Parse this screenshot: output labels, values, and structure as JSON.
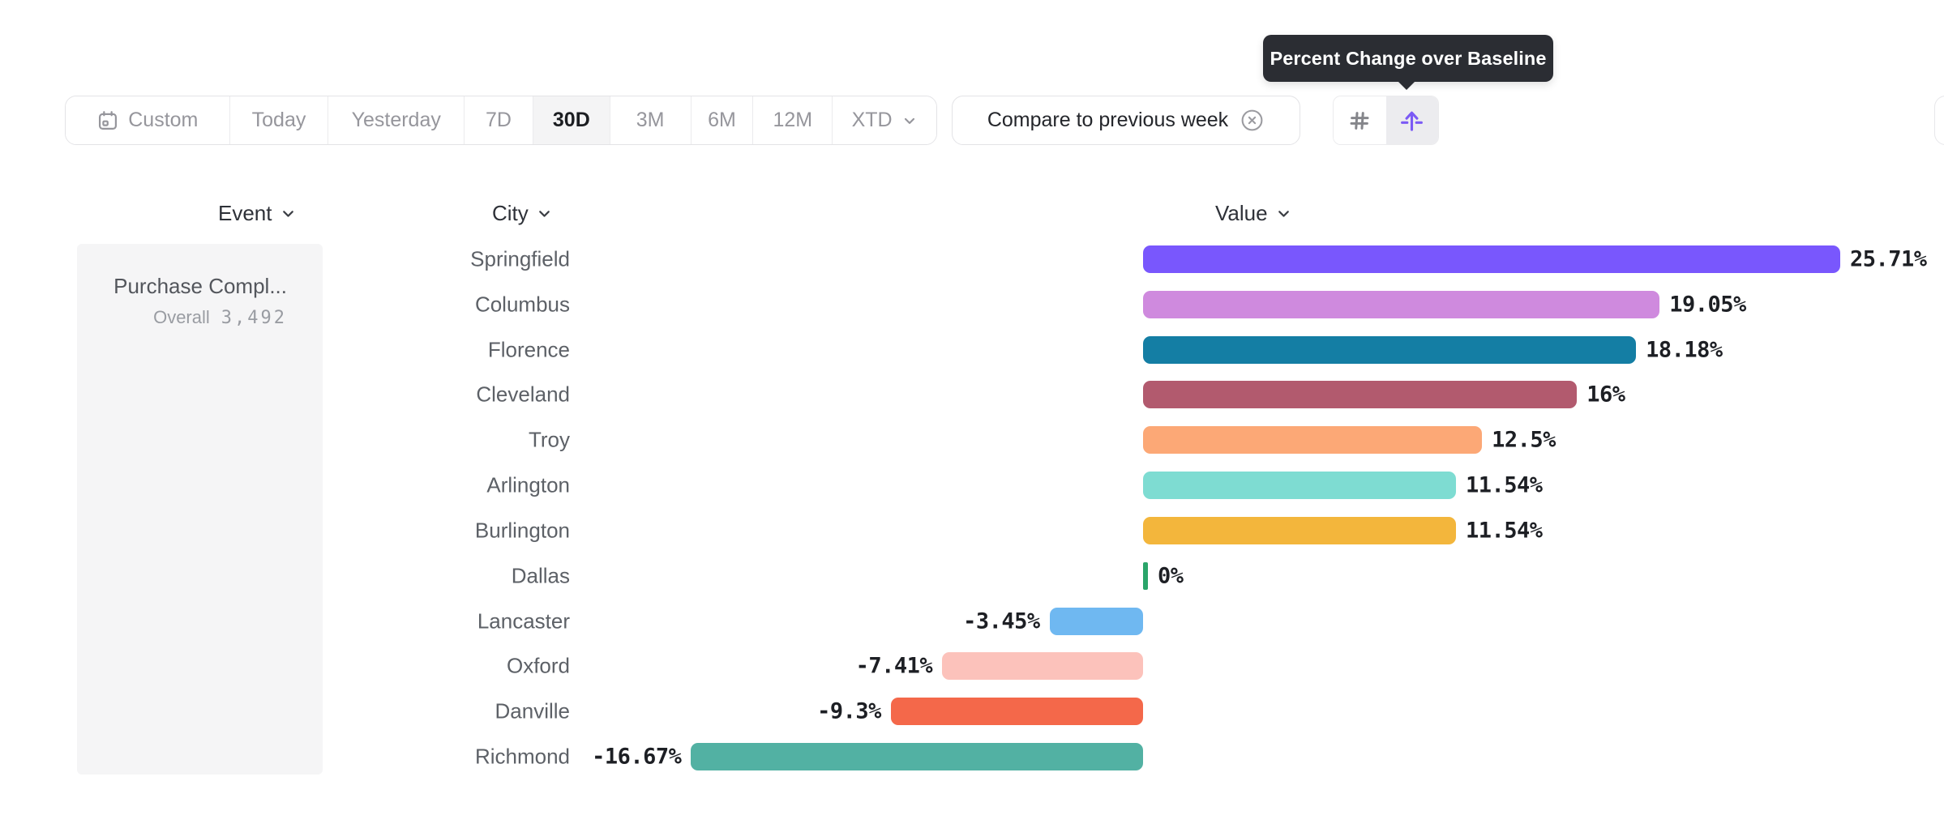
{
  "tooltip": {
    "text": "Percent Change over Baseline"
  },
  "toolbar": {
    "date_ranges": [
      {
        "label": "Custom",
        "icon": "calendar-icon"
      },
      {
        "label": "Today"
      },
      {
        "label": "Yesterday"
      },
      {
        "label": "7D"
      },
      {
        "label": "30D"
      },
      {
        "label": "3M"
      },
      {
        "label": "6M"
      },
      {
        "label": "12M"
      },
      {
        "label": "XTD",
        "icon": "chevron-down-icon"
      }
    ],
    "active_range": "30D",
    "compare": {
      "label": "Compare to previous week",
      "remove_icon": "circle-x-icon"
    },
    "view_toggles": [
      {
        "name": "absolute-values",
        "icon": "hash-icon",
        "active": false
      },
      {
        "name": "percent-change-baseline",
        "icon": "baseline-arrow-icon",
        "active": true
      }
    ]
  },
  "columns": {
    "event": "Event",
    "city": "City",
    "value": "Value"
  },
  "event_panel": {
    "event_name": "Purchase Compl...",
    "overall_label": "Overall",
    "overall_value": "3,492"
  },
  "chart_data": {
    "type": "bar",
    "orientation": "horizontal",
    "title": "Percent Change over Baseline",
    "categories": [
      "Springfield",
      "Columbus",
      "Florence",
      "Cleveland",
      "Troy",
      "Arlington",
      "Burlington",
      "Dallas",
      "Lancaster",
      "Oxford",
      "Danville",
      "Richmond"
    ],
    "values": [
      25.71,
      19.05,
      18.18,
      16,
      12.5,
      11.54,
      11.54,
      0,
      -3.45,
      -7.41,
      -9.3,
      -16.67
    ],
    "labels": [
      "25.71%",
      "19.05%",
      "18.18%",
      "16%",
      "12.5%",
      "11.54%",
      "11.54%",
      "0%",
      "-3.45%",
      "-7.41%",
      "-9.3%",
      "-16.67%"
    ],
    "colors": [
      "#7957fd",
      "#cf8ade",
      "#147ea4",
      "#b25a6e",
      "#fca876",
      "#7edcd2",
      "#f3b63c",
      "#2aa56a",
      "#6fb8f1",
      "#fcc2bb",
      "#f4684a",
      "#52b1a3"
    ],
    "baseline": 0,
    "xlim": [
      -16.67,
      25.71
    ],
    "value_suffix": "%",
    "grid": false,
    "legend": false
  },
  "colors": {
    "accent_purple": "#7b5af5",
    "tooltip_bg": "#2b2d33",
    "panel_bg": "#f5f5f6",
    "border": "#e3e3e6",
    "inactive_text": "#96969c",
    "zero_bar_green": "#2aa56a"
  }
}
